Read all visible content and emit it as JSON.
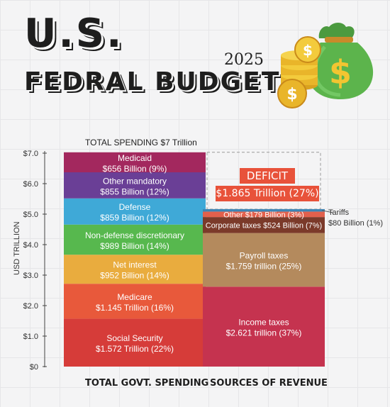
{
  "header": {
    "title_line1": "U.S.",
    "title_line2": "FEDRAL BUDGET",
    "year": "2025"
  },
  "chart_data": {
    "type": "bar",
    "subtype": "stacked",
    "title": "TOTAL SPENDING $7 Trillion",
    "ylabel": "USD TRILLION",
    "ylim": [
      0,
      7.0
    ],
    "yticks": [
      "$0",
      "$1.0",
      "$2.0",
      "$3.0",
      "$4.0",
      "$5.0",
      "$6.0",
      "$7.0"
    ],
    "categories": [
      "TOTAL GOVT. SPENDING",
      "SOURCES OF REVENUE"
    ],
    "grid": false,
    "spending": [
      {
        "name": "Social Security",
        "label": "$1.572 Trillion (22%)",
        "value": 1.572,
        "color": "#d63c39"
      },
      {
        "name": "Medicare",
        "label": "$1.145 Trillion (16%)",
        "value": 1.145,
        "color": "#e8593b"
      },
      {
        "name": "Net interest",
        "label": "$952 Billion (14%)",
        "value": 0.952,
        "color": "#e9ac3e"
      },
      {
        "name": "Non-defense discretionary",
        "label": "$989 Billion (14%)",
        "value": 0.989,
        "color": "#57b84e"
      },
      {
        "name": "Defense",
        "label": "$859 Billion (12%)",
        "value": 0.859,
        "color": "#3fa9d7"
      },
      {
        "name": "Other mandatory",
        "label": "$855 Billion (12%)",
        "value": 0.855,
        "color": "#6a3f96"
      },
      {
        "name": "Medicaid",
        "label": "$656 Billion (9%)",
        "value": 0.656,
        "color": "#a3285e"
      }
    ],
    "revenue": [
      {
        "name": "Income taxes",
        "label": "$2.621 trillion (37%)",
        "value": 2.621,
        "color": "#c5334f"
      },
      {
        "name": "Payroll taxes",
        "label": "$1.759 trillion (25%)",
        "value": 1.759,
        "color": "#b48a5d"
      },
      {
        "name": "Corporate taxes",
        "label": "Corporate taxes $524 Billion (7%)",
        "value": 0.524,
        "color": "#7b3a2a"
      },
      {
        "name": "Other",
        "label": "Other  $179 Billion  (3%)",
        "value": 0.179,
        "color": "#e2604c"
      },
      {
        "name": "Tariffs",
        "label": "",
        "value": 0.08,
        "color": "#3e86b6"
      }
    ],
    "tariffs_note": [
      "Tariffs",
      "$80 Billion (1%)"
    ],
    "deficit": {
      "label": "DEFICIT",
      "value_label": "$1.865 Trillion (27%)",
      "value": 1.865
    }
  }
}
